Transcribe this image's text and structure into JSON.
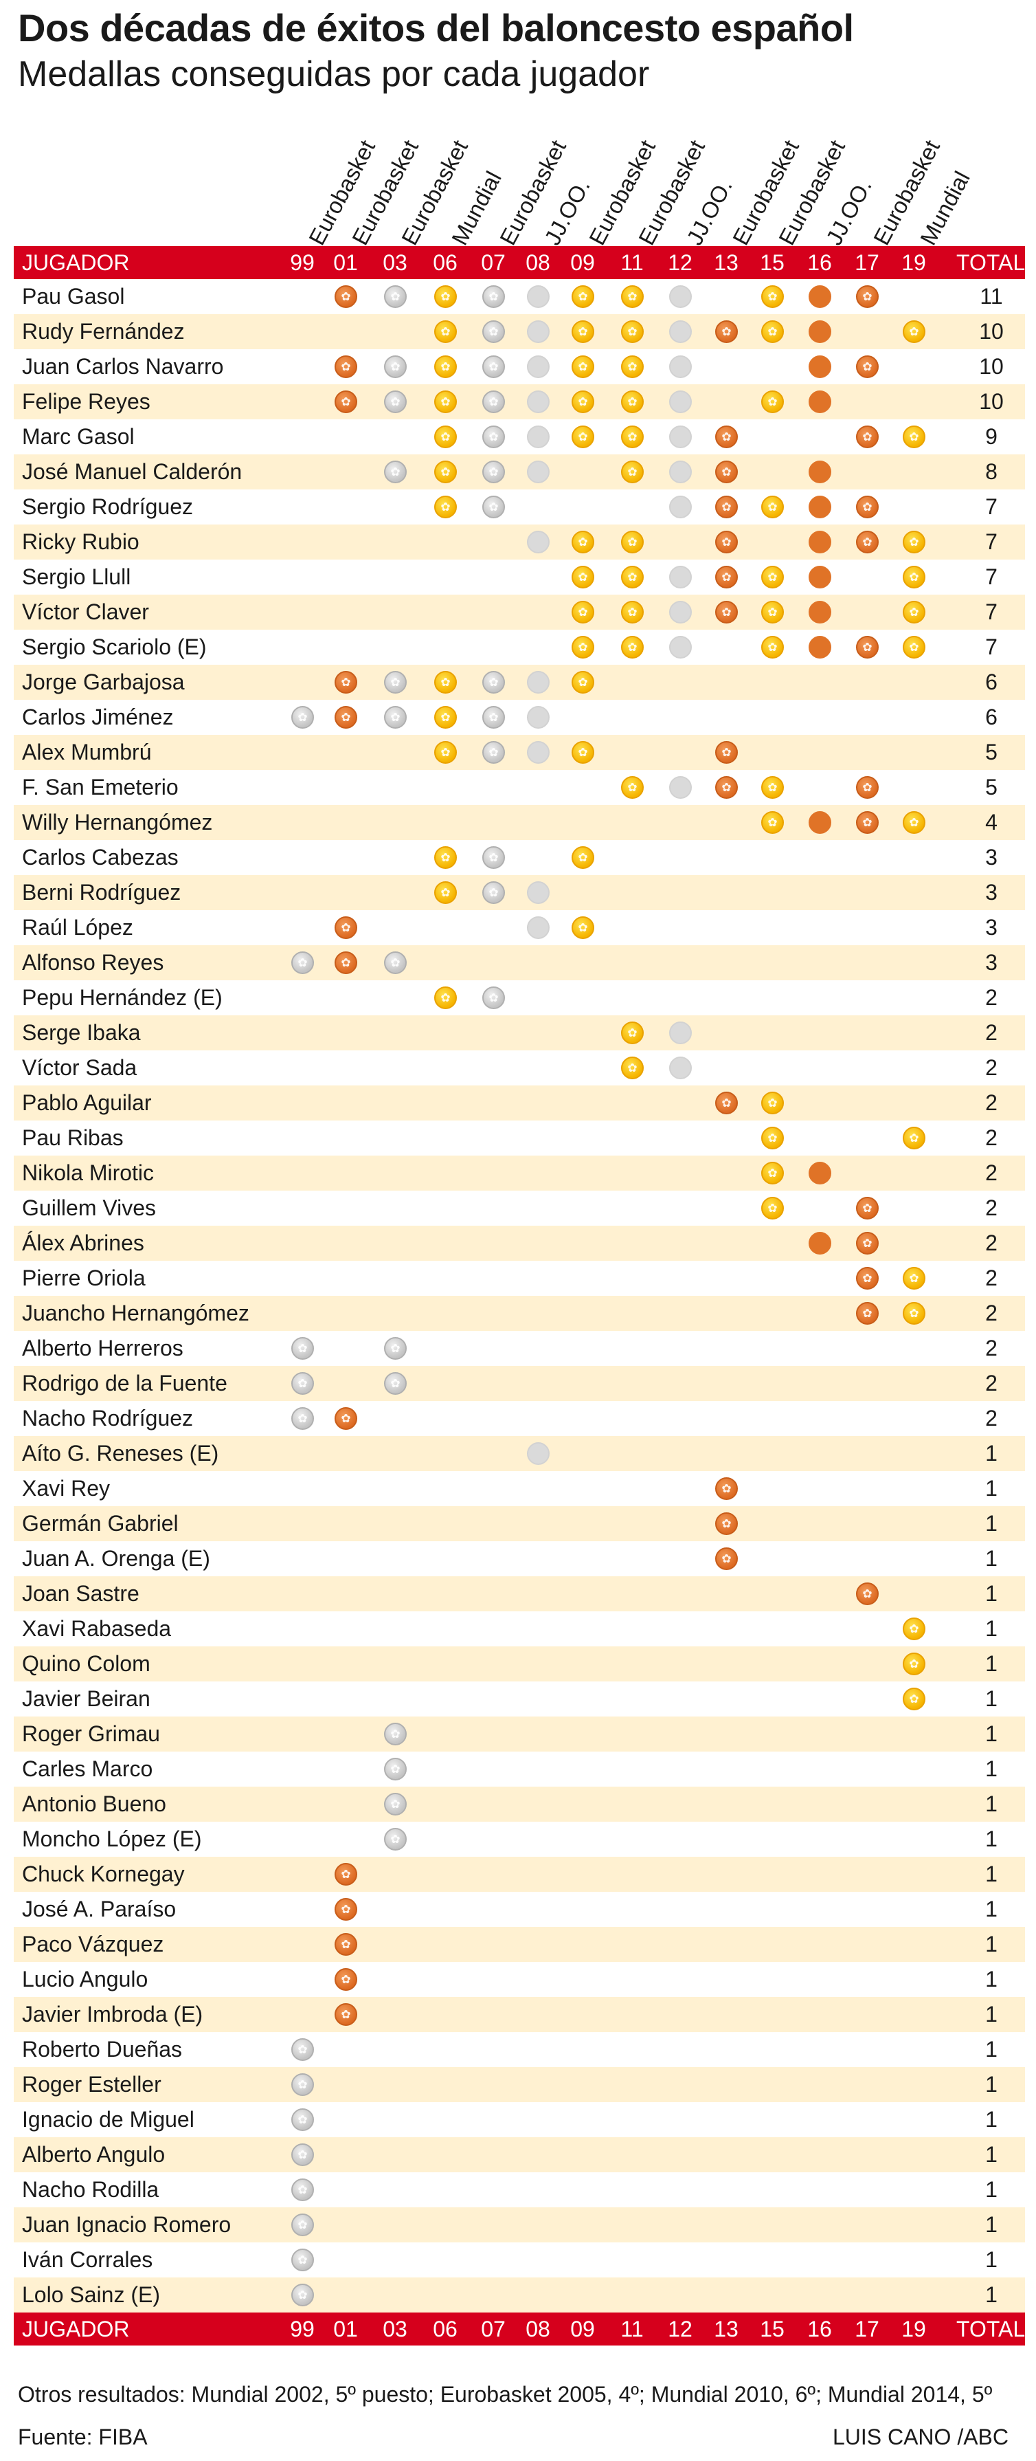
{
  "title": "Dos décadas de éxitos del baloncesto español",
  "subtitle": "Medallas conseguidas por cada jugador",
  "header_label": "JUGADOR",
  "total_label": "TOTAL",
  "notes": "Otros resultados: Mundial 2002, 5º puesto; Eurobasket 2005, 4º; Mundial 2010, 6º; Mundial 2014, 5º",
  "source": "Fuente: FIBA",
  "credit": "LUIS CANO /ABC",
  "colors": {
    "header_bar": "#d6001c",
    "row_shade": "#fff1d1",
    "gold": "#f6b400",
    "silver": "#c4c4c4",
    "bronze": "#dd6a22"
  },
  "chart_data": {
    "type": "table",
    "competitions": [
      {
        "name": "Eurobasket",
        "year": "99"
      },
      {
        "name": "Eurobasket",
        "year": "01"
      },
      {
        "name": "Eurobasket",
        "year": "03"
      },
      {
        "name": "Mundial",
        "year": "06"
      },
      {
        "name": "Eurobasket",
        "year": "07"
      },
      {
        "name": "JJ.OO.",
        "year": "08"
      },
      {
        "name": "Eurobasket",
        "year": "09"
      },
      {
        "name": "Eurobasket",
        "year": "11"
      },
      {
        "name": "JJ.OO.",
        "year": "12"
      },
      {
        "name": "Eurobasket",
        "year": "13"
      },
      {
        "name": "Eurobasket",
        "year": "15"
      },
      {
        "name": "JJ.OO.",
        "year": "16"
      },
      {
        "name": "Eurobasket",
        "year": "17"
      },
      {
        "name": "Mundial",
        "year": "19"
      }
    ],
    "medal_by_competition": [
      "silver",
      "bronze",
      "silver",
      "gold",
      "silver",
      "silver",
      "gold",
      "gold",
      "silver",
      "bronze",
      "gold",
      "bronze",
      "bronze",
      "gold"
    ],
    "players": [
      {
        "name": "Pau Gasol",
        "medals": [
          "01",
          "03",
          "06",
          "07",
          "08",
          "09",
          "11",
          "12",
          "15",
          "16",
          "17"
        ],
        "total": 11
      },
      {
        "name": "Rudy Fernández",
        "medals": [
          "06",
          "07",
          "08",
          "09",
          "11",
          "12",
          "13",
          "15",
          "16",
          "19"
        ],
        "total": 10
      },
      {
        "name": "Juan Carlos Navarro",
        "medals": [
          "01",
          "03",
          "06",
          "07",
          "08",
          "09",
          "11",
          "12",
          "16",
          "17"
        ],
        "total": 10
      },
      {
        "name": "Felipe Reyes",
        "medals": [
          "01",
          "03",
          "06",
          "07",
          "08",
          "09",
          "11",
          "12",
          "15",
          "16"
        ],
        "total": 10
      },
      {
        "name": "Marc Gasol",
        "medals": [
          "06",
          "07",
          "08",
          "09",
          "11",
          "12",
          "13",
          "17",
          "19"
        ],
        "total": 9
      },
      {
        "name": "José Manuel Calderón",
        "medals": [
          "03",
          "06",
          "07",
          "08",
          "11",
          "12",
          "13",
          "16"
        ],
        "total": 8
      },
      {
        "name": "Sergio Rodríguez",
        "medals": [
          "06",
          "07",
          "12",
          "13",
          "15",
          "16",
          "17"
        ],
        "total": 7
      },
      {
        "name": "Ricky Rubio",
        "medals": [
          "08",
          "09",
          "11",
          "13",
          "16",
          "17",
          "19"
        ],
        "total": 7
      },
      {
        "name": "Sergio Llull",
        "medals": [
          "09",
          "11",
          "12",
          "13",
          "15",
          "16",
          "19"
        ],
        "total": 7
      },
      {
        "name": "Víctor Claver",
        "medals": [
          "09",
          "11",
          "12",
          "13",
          "15",
          "16",
          "19"
        ],
        "total": 7
      },
      {
        "name": "Sergio Scariolo (E)",
        "medals": [
          "09",
          "11",
          "12",
          "15",
          "16",
          "17",
          "19"
        ],
        "total": 7
      },
      {
        "name": "Jorge Garbajosa",
        "medals": [
          "01",
          "03",
          "06",
          "07",
          "08",
          "09"
        ],
        "total": 6
      },
      {
        "name": "Carlos Jiménez",
        "medals": [
          "99",
          "01",
          "03",
          "06",
          "07",
          "08"
        ],
        "total": 6
      },
      {
        "name": "Alex Mumbrú",
        "medals": [
          "06",
          "07",
          "08",
          "09",
          "13"
        ],
        "total": 5
      },
      {
        "name": "F. San Emeterio",
        "medals": [
          "11",
          "12",
          "13",
          "15",
          "17"
        ],
        "total": 5
      },
      {
        "name": "Willy Hernangómez",
        "medals": [
          "15",
          "16",
          "17",
          "19"
        ],
        "total": 4
      },
      {
        "name": "Carlos Cabezas",
        "medals": [
          "06",
          "07",
          "09"
        ],
        "total": 3
      },
      {
        "name": "Berni Rodríguez",
        "medals": [
          "06",
          "07",
          "08"
        ],
        "total": 3
      },
      {
        "name": "Raúl López",
        "medals": [
          "01",
          "08",
          "09"
        ],
        "total": 3
      },
      {
        "name": "Alfonso Reyes",
        "medals": [
          "99",
          "01",
          "03"
        ],
        "total": 3
      },
      {
        "name": "Pepu Hernández (E)",
        "medals": [
          "06",
          "07"
        ],
        "total": 2
      },
      {
        "name": "Serge Ibaka",
        "medals": [
          "11",
          "12"
        ],
        "total": 2
      },
      {
        "name": "Víctor Sada",
        "medals": [
          "11",
          "12"
        ],
        "total": 2
      },
      {
        "name": "Pablo Aguilar",
        "medals": [
          "13",
          "15"
        ],
        "total": 2
      },
      {
        "name": "Pau Ribas",
        "medals": [
          "15",
          "19"
        ],
        "total": 2
      },
      {
        "name": "Nikola Mirotic",
        "medals": [
          "15",
          "16"
        ],
        "total": 2
      },
      {
        "name": "Guillem Vives",
        "medals": [
          "15",
          "17"
        ],
        "total": 2
      },
      {
        "name": "Álex Abrines",
        "medals": [
          "16",
          "17"
        ],
        "total": 2
      },
      {
        "name": "Pierre Oriola",
        "medals": [
          "17",
          "19"
        ],
        "total": 2
      },
      {
        "name": "Juancho Hernangómez",
        "medals": [
          "17",
          "19"
        ],
        "total": 2
      },
      {
        "name": "Alberto Herreros",
        "medals": [
          "99",
          "03"
        ],
        "total": 2
      },
      {
        "name": "Rodrigo de la Fuente",
        "medals": [
          "99",
          "03"
        ],
        "total": 2
      },
      {
        "name": "Nacho Rodríguez",
        "medals": [
          "99",
          "01"
        ],
        "total": 2
      },
      {
        "name": "Aíto G. Reneses (E)",
        "medals": [
          "08"
        ],
        "total": 1
      },
      {
        "name": "Xavi Rey",
        "medals": [
          "13"
        ],
        "total": 1
      },
      {
        "name": "Germán Gabriel",
        "medals": [
          "13"
        ],
        "total": 1
      },
      {
        "name": "Juan A. Orenga (E)",
        "medals": [
          "13"
        ],
        "total": 1
      },
      {
        "name": "Joan Sastre",
        "medals": [
          "17"
        ],
        "total": 1
      },
      {
        "name": "Xavi Rabaseda",
        "medals": [
          "19"
        ],
        "total": 1
      },
      {
        "name": "Quino Colom",
        "medals": [
          "19"
        ],
        "total": 1
      },
      {
        "name": "Javier Beiran",
        "medals": [
          "19"
        ],
        "total": 1
      },
      {
        "name": "Roger Grimau",
        "medals": [
          "03"
        ],
        "total": 1
      },
      {
        "name": "Carles Marco",
        "medals": [
          "03"
        ],
        "total": 1
      },
      {
        "name": "Antonio Bueno",
        "medals": [
          "03"
        ],
        "total": 1
      },
      {
        "name": "Moncho López (E)",
        "medals": [
          "03"
        ],
        "total": 1
      },
      {
        "name": "Chuck Kornegay",
        "medals": [
          "01"
        ],
        "total": 1
      },
      {
        "name": "José A. Paraíso",
        "medals": [
          "01"
        ],
        "total": 1
      },
      {
        "name": "Paco Vázquez",
        "medals": [
          "01"
        ],
        "total": 1
      },
      {
        "name": "Lucio Angulo",
        "medals": [
          "01"
        ],
        "total": 1
      },
      {
        "name": "Javier Imbroda (E)",
        "medals": [
          "01"
        ],
        "total": 1
      },
      {
        "name": "Roberto Dueñas",
        "medals": [
          "99"
        ],
        "total": 1
      },
      {
        "name": "Roger Esteller",
        "medals": [
          "99"
        ],
        "total": 1
      },
      {
        "name": "Ignacio de Miguel",
        "medals": [
          "99"
        ],
        "total": 1
      },
      {
        "name": "Alberto Angulo",
        "medals": [
          "99"
        ],
        "total": 1
      },
      {
        "name": "Nacho Rodilla",
        "medals": [
          "99"
        ],
        "total": 1
      },
      {
        "name": "Juan Ignacio Romero",
        "medals": [
          "99"
        ],
        "total": 1
      },
      {
        "name": "Iván Corrales",
        "medals": [
          "99"
        ],
        "total": 1
      },
      {
        "name": "Lolo Sainz (E)",
        "medals": [
          "99"
        ],
        "total": 1
      }
    ]
  }
}
